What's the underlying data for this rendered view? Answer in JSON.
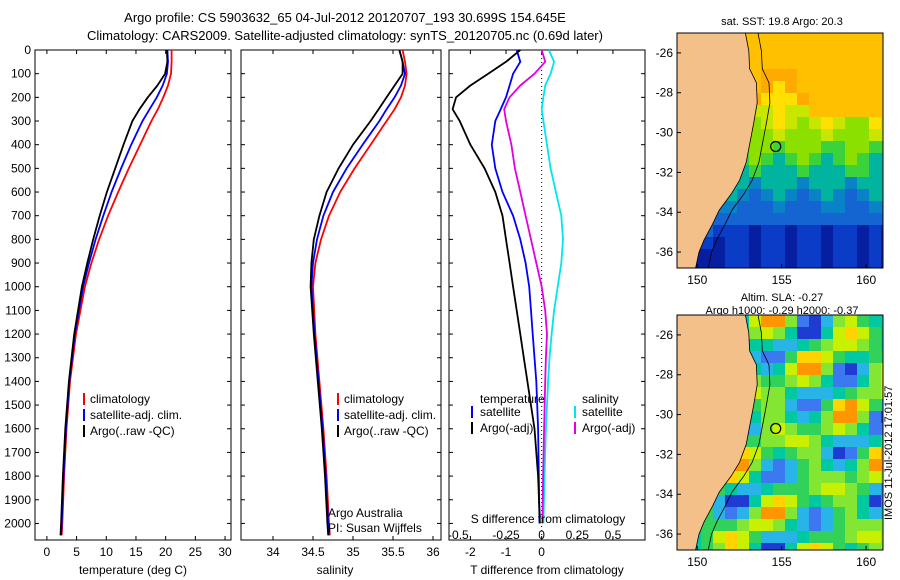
{
  "figure": {
    "title_line1": "Argo profile: CS 5903632_65 04-Jul-2012 20120707_193 30.699S 154.645E",
    "title_line2": "Climatology: CARS2009. Satellite-adjusted climatology: synTS_20120705.nc (0.69d later)",
    "timestamp": "IMOS 11-Jul-2012 17:01:57"
  },
  "chart_data": [
    {
      "type": "line",
      "panel": "temperature",
      "xlabel": "temperature (deg C)",
      "ylabel": "",
      "xlim": [
        -2,
        31
      ],
      "ylim": [
        2070,
        0
      ],
      "x_ticks": [
        0,
        5,
        10,
        15,
        20,
        25,
        30
      ],
      "y_ticks": [
        0,
        100,
        200,
        300,
        400,
        500,
        600,
        700,
        800,
        900,
        1000,
        1100,
        1200,
        1300,
        1400,
        1500,
        1600,
        1700,
        1800,
        1900,
        2000
      ],
      "y": [
        0,
        50,
        100,
        150,
        200,
        250,
        300,
        400,
        500,
        600,
        700,
        800,
        900,
        1000,
        1200,
        1400,
        1600,
        1800,
        2000,
        2050
      ],
      "series": [
        {
          "name": "climatology",
          "color": "#ff0000",
          "x": [
            21.0,
            21.0,
            20.9,
            20.4,
            19.6,
            18.7,
            17.6,
            15.7,
            13.8,
            12.0,
            10.3,
            8.8,
            7.5,
            6.4,
            4.9,
            3.9,
            3.3,
            2.9,
            2.6,
            2.5
          ]
        },
        {
          "name": "satellite-adj. clim.",
          "color": "#0000ff",
          "x": [
            20.3,
            20.4,
            20.2,
            19.5,
            18.5,
            17.3,
            16.1,
            14.2,
            12.5,
            10.9,
            9.5,
            8.2,
            7.1,
            6.1,
            4.7,
            3.8,
            3.2,
            2.8,
            2.5,
            2.4
          ]
        },
        {
          "name": "Argo(..raw -QC)",
          "color": "#000000",
          "x": [
            20.2,
            20.3,
            19.9,
            18.6,
            17.0,
            15.6,
            14.4,
            12.9,
            11.5,
            10.1,
            8.9,
            7.8,
            6.8,
            5.9,
            4.6,
            3.7,
            3.1,
            2.7,
            2.4,
            2.3
          ]
        }
      ],
      "legend": {
        "placement": "lower-right"
      }
    },
    {
      "type": "line",
      "panel": "salinity",
      "xlabel": "salinity",
      "xlim": [
        33.6,
        36.1
      ],
      "ylim": [
        2070,
        0
      ],
      "x_ticks": [
        34,
        34.5,
        35,
        35.5,
        36
      ],
      "y": [
        0,
        50,
        100,
        150,
        200,
        250,
        300,
        400,
        500,
        600,
        700,
        800,
        900,
        1000,
        1200,
        1400,
        1600,
        1800,
        2000,
        2050
      ],
      "series": [
        {
          "name": "climatology",
          "color": "#ff0000",
          "x": [
            35.62,
            35.65,
            35.67,
            35.65,
            35.6,
            35.52,
            35.42,
            35.22,
            35.02,
            34.84,
            34.7,
            34.6,
            34.53,
            34.5,
            34.53,
            34.58,
            34.63,
            34.67,
            34.7,
            34.71
          ]
        },
        {
          "name": "satellite-adj. clim.",
          "color": "#0000ff",
          "x": [
            35.58,
            35.62,
            35.65,
            35.6,
            35.52,
            35.42,
            35.33,
            35.12,
            34.92,
            34.75,
            34.63,
            34.55,
            34.5,
            34.48,
            34.52,
            34.57,
            34.62,
            34.66,
            34.69,
            34.7
          ]
        },
        {
          "name": "Argo(..raw -QC)",
          "color": "#000000",
          "x": [
            35.58,
            35.62,
            35.62,
            35.52,
            35.42,
            35.32,
            35.22,
            35.0,
            34.82,
            34.67,
            34.58,
            34.51,
            34.48,
            34.47,
            34.51,
            34.56,
            34.61,
            34.65,
            34.68,
            34.69
          ]
        }
      ],
      "legend": {
        "placement": "lower-right"
      },
      "annotation_line1": "Argo Australia",
      "annotation_line2": "PI: Susan Wijffels"
    },
    {
      "type": "line",
      "panel": "differences",
      "xlabel": "T difference from climatology",
      "xlabel_top": "S difference from climatology",
      "xlim": [
        -2.6,
        2.9
      ],
      "ylim": [
        2070,
        0
      ],
      "x_ticks": [
        -2,
        -1,
        0,
        1,
        2
      ],
      "x_tick_labels": [
        "-2",
        "-1",
        "0",
        "",
        ""
      ],
      "s_ticks": [
        "-0.5",
        "-0.25",
        "0",
        "0.25",
        "0.5"
      ],
      "y": [
        0,
        50,
        100,
        150,
        200,
        250,
        300,
        400,
        500,
        600,
        700,
        800,
        900,
        1000,
        1100,
        1200,
        1300,
        1400,
        1600,
        1800,
        2000
      ],
      "series": [
        {
          "name": "temperature satellite",
          "group": "temperature",
          "color": "#0000ff",
          "x": [
            -0.7,
            -0.6,
            -0.8,
            -0.9,
            -1.0,
            -1.15,
            -1.3,
            -1.4,
            -1.3,
            -1.1,
            -0.8,
            -0.6,
            -0.45,
            -0.35,
            -0.3,
            -0.25,
            -0.2,
            -0.15,
            -0.1,
            -0.08,
            -0.06
          ]
        },
        {
          "name": "temperature Argo(-adj)",
          "group": "temperature",
          "color": "#000000",
          "x": [
            -0.6,
            -1.0,
            -1.5,
            -2.0,
            -2.4,
            -2.5,
            -2.3,
            -2.0,
            -1.6,
            -1.3,
            -1.1,
            -1.0,
            -0.9,
            -0.8,
            -0.7,
            -0.6,
            -0.5,
            -0.4,
            -0.2,
            -0.1,
            -0.05
          ]
        },
        {
          "name": "salinity satellite",
          "group": "salinity",
          "color": "#00e5ee",
          "x": [
            0.2,
            0.35,
            0.25,
            0.1,
            0.05,
            0.0,
            0.05,
            0.15,
            0.25,
            0.4,
            0.55,
            0.6,
            0.55,
            0.45,
            0.35,
            0.28,
            0.22,
            0.18,
            0.12,
            0.08,
            0.05
          ]
        },
        {
          "name": "salinity Argo(-adj)",
          "group": "salinity",
          "color": "#e000e0",
          "x": [
            0.0,
            0.1,
            -0.2,
            -0.6,
            -0.9,
            -1.05,
            -1.0,
            -0.85,
            -0.75,
            -0.6,
            -0.45,
            -0.3,
            -0.15,
            0.0,
            0.1,
            0.15,
            0.12,
            0.1,
            0.07,
            0.04,
            0.02
          ]
        }
      ],
      "legend_headers": [
        "temperature",
        "salinity"
      ]
    }
  ],
  "maps": [
    {
      "name": "sst-map",
      "title": "sat. SST: 19.8  Argo: 20.3",
      "title2": "",
      "lon_ticks": [
        "150",
        "155",
        "160"
      ],
      "lat_ticks": [
        "-26",
        "-28",
        "-30",
        "-32",
        "-34",
        "-36"
      ],
      "float_lon": 154.645,
      "float_lat": -30.699
    },
    {
      "name": "sla-map",
      "title": "Altim. SLA: -0.27",
      "title2": "Argo h1000: -0.29  h2000: -0.37",
      "lon_ticks": [
        "150",
        "155",
        "160"
      ],
      "lat_ticks": [
        "-26",
        "-28",
        "-30",
        "-32",
        "-34",
        "-36"
      ],
      "float_lon": 154.645,
      "float_lat": -30.699
    }
  ],
  "colors": {
    "land": "#f4c08a",
    "climatology": "#ff0000",
    "satellite": "#0000ff",
    "argo": "#000000",
    "salinity_satellite": "#00e5ee",
    "salinity_argo": "#e000e0"
  }
}
